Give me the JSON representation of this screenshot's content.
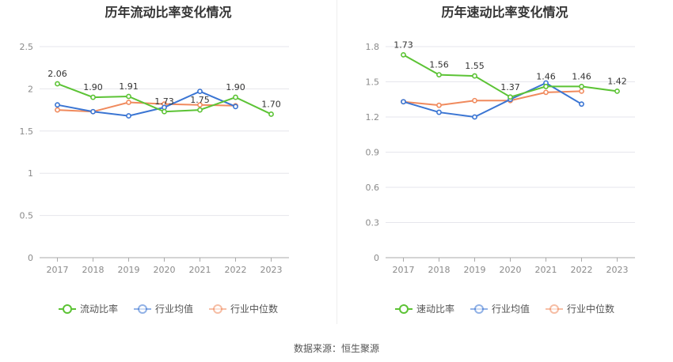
{
  "charts": [
    {
      "title": "历年流动比率变化情况",
      "legend": [
        "流动比率",
        "行业均值",
        "行业中位数"
      ],
      "yticks": [
        "0",
        "0.5",
        "1",
        "1.5",
        "2",
        "2.5"
      ]
    },
    {
      "title": "历年速动比率变化情况",
      "legend": [
        "速动比率",
        "行业均值",
        "行业中位数"
      ],
      "yticks": [
        "0",
        "0.3",
        "0.6",
        "0.9",
        "1.2",
        "1.5",
        "1.8"
      ]
    }
  ],
  "source": "数据来源：恒生聚源",
  "colors": {
    "main": "#5cc335",
    "avg": "#3a75d3",
    "median": "#f08a5d"
  },
  "chart_data": [
    {
      "type": "line",
      "title": "历年流动比率变化情况",
      "categories": [
        "2017",
        "2018",
        "2019",
        "2020",
        "2021",
        "2022",
        "2023"
      ],
      "ylim": [
        0,
        2.5
      ],
      "grid": true,
      "legend_position": "bottom",
      "series": [
        {
          "name": "流动比率",
          "values": [
            2.06,
            1.9,
            1.91,
            1.73,
            1.75,
            1.9,
            1.7
          ],
          "labels": [
            "2.06",
            "1.90",
            "1.91",
            "1.73",
            "1.75",
            "1.90",
            "1.70"
          ]
        },
        {
          "name": "行业均值",
          "values": [
            1.81,
            1.73,
            1.68,
            1.78,
            1.97,
            1.79,
            null
          ]
        },
        {
          "name": "行业中位数",
          "values": [
            1.75,
            1.73,
            1.84,
            1.82,
            1.81,
            1.8,
            null
          ]
        }
      ]
    },
    {
      "type": "line",
      "title": "历年速动比率变化情况",
      "categories": [
        "2017",
        "2018",
        "2019",
        "2020",
        "2021",
        "2022",
        "2023"
      ],
      "ylim": [
        0,
        1.8
      ],
      "grid": true,
      "legend_position": "bottom",
      "series": [
        {
          "name": "速动比率",
          "values": [
            1.73,
            1.56,
            1.55,
            1.37,
            1.46,
            1.46,
            1.42
          ],
          "labels": [
            "1.73",
            "1.56",
            "1.55",
            "1.37",
            "1.46",
            "1.46",
            "1.42"
          ]
        },
        {
          "name": "行业均值",
          "values": [
            1.33,
            1.24,
            1.2,
            1.35,
            1.49,
            1.31,
            null
          ]
        },
        {
          "name": "行业中位数",
          "values": [
            1.33,
            1.3,
            1.34,
            1.34,
            1.41,
            1.42,
            null
          ]
        }
      ]
    }
  ]
}
